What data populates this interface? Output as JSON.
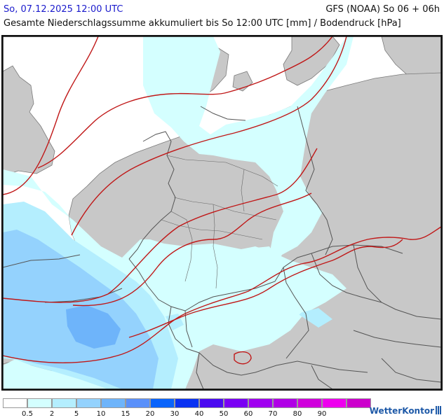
{
  "header": {
    "date": "So, 07.12.2025 12:00 UTC",
    "model": "GFS (NOAA) So 06 + 06h",
    "title": "Gesamte Niederschlagssumme akkumuliert bis So 12:00 UTC [mm] / Bodendruck [hPa]"
  },
  "legend": {
    "colors": [
      "#ffffff",
      "#d4ffff",
      "#b4eefe",
      "#94d2fd",
      "#6eb4fa",
      "#5a90fa",
      "#0a64fb",
      "#0a32f2",
      "#4a0af0",
      "#7a00f4",
      "#a000f0",
      "#b000e6",
      "#d000dc",
      "#ee00ee",
      "#cc00cc"
    ],
    "ticks": [
      "0.5",
      "2",
      "5",
      "10",
      "15",
      "20",
      "30",
      "40",
      "50",
      "60",
      "70",
      "80",
      "90"
    ]
  },
  "map": {
    "land_color": "#c8c8c8",
    "sea_color": "#ffffff",
    "isobar_color": "#c01818",
    "border_color": "#555555"
  },
  "brand": {
    "name": "WetterKontor",
    "icon": "wetterkontor-logo-icon"
  }
}
